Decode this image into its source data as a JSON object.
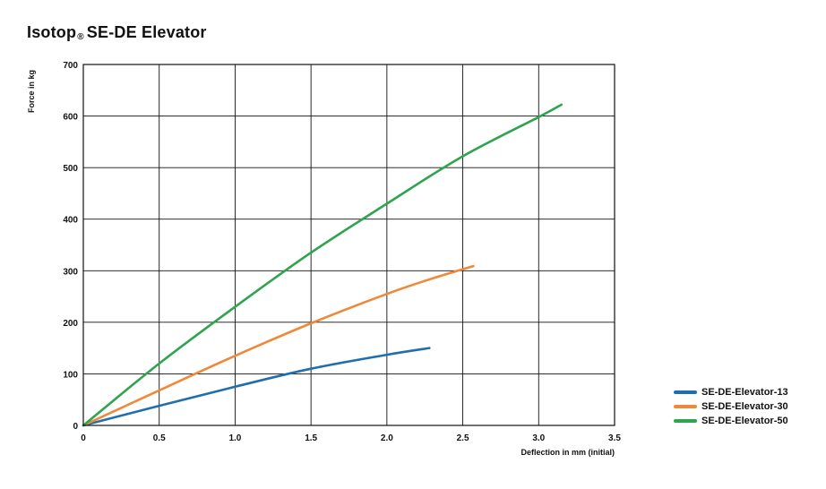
{
  "header": {
    "title_main": "Isotop",
    "title_reg": "®",
    "title_rest": "SE-DE Elevator"
  },
  "chart_data": {
    "type": "line",
    "title": "Isotop® SE-DE Elevator",
    "xlabel": "Deflection in mm (initial)",
    "ylabel": "Force in kg",
    "xlim": [
      0,
      3.5
    ],
    "ylim": [
      0,
      700
    ],
    "x_ticks": [
      "0",
      "0.5",
      "1.0",
      "1.5",
      "2.0",
      "2.5",
      "3.0",
      "3.5"
    ],
    "y_ticks": [
      "0",
      "100",
      "200",
      "300",
      "400",
      "500",
      "600",
      "700"
    ],
    "grid": true,
    "legend_position": "bottom-right, outside plot",
    "series": [
      {
        "name": "SE-DE-Elevator-13",
        "color": "#1f6fae",
        "points": [
          [
            0,
            0
          ],
          [
            0.5,
            38
          ],
          [
            1.0,
            75
          ],
          [
            1.5,
            110
          ],
          [
            2.0,
            137
          ],
          [
            2.28,
            150
          ]
        ]
      },
      {
        "name": "SE-DE-Elevator-30",
        "color": "#f0883a",
        "points": [
          [
            0,
            0
          ],
          [
            0.5,
            68
          ],
          [
            1.0,
            135
          ],
          [
            1.5,
            198
          ],
          [
            2.0,
            255
          ],
          [
            2.3,
            285
          ],
          [
            2.57,
            309
          ]
        ]
      },
      {
        "name": "SE-DE-Elevator-50",
        "color": "#2ea44f",
        "points": [
          [
            0,
            0
          ],
          [
            0.5,
            120
          ],
          [
            1.0,
            230
          ],
          [
            1.5,
            335
          ],
          [
            2.0,
            430
          ],
          [
            2.5,
            522
          ],
          [
            3.0,
            598
          ],
          [
            3.15,
            622
          ]
        ]
      }
    ]
  }
}
